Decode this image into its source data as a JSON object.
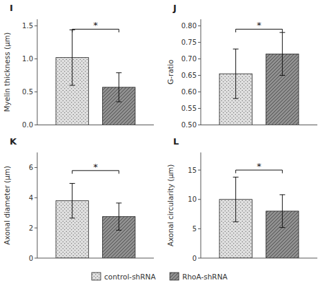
{
  "chart_data": [
    {
      "type": "bar",
      "title": "I",
      "y_label": "Myelin thickness (μm)",
      "categories": [
        null
      ],
      "series": [
        {
          "color": "#e0e0e0",
          "values": [
            1.02
          ],
          "errors": [
            0.42
          ]
        },
        {
          "color": "#909090",
          "values": [
            0.57
          ],
          "errors": [
            0.22
          ]
        }
      ],
      "ylim": [
        0,
        1.6
      ],
      "yticks": [
        {
          "value": 0.0,
          "label": "0.0"
        },
        {
          "value": 0.5,
          "label": "0.5"
        },
        {
          "value": 1.0,
          "label": "1.0"
        },
        {
          "value": 1.5,
          "label": "1.5"
        }
      ],
      "tick_labels": "y",
      "annotations": [
        {
          "text": "*",
          "y": 1.45
        }
      ]
    },
    {
      "type": "bar",
      "title": "J",
      "y_label": "G-ratio",
      "categories": [
        null
      ],
      "series": [
        {
          "color": "#e0e0e0",
          "values": [
            0.655
          ],
          "errors": [
            0.075
          ]
        },
        {
          "color": "#909090",
          "values": [
            0.715
          ],
          "errors": [
            0.065
          ]
        }
      ],
      "ylim": [
        0.5,
        0.82
      ],
      "yticks": [
        {
          "value": 0.5,
          "label": "0.50"
        },
        {
          "value": 0.55,
          "label": "0.55"
        },
        {
          "value": 0.6,
          "label": "0.60"
        },
        {
          "value": 0.65,
          "label": "0.65"
        },
        {
          "value": 0.7,
          "label": "0.70"
        },
        {
          "value": 0.75,
          "label": "0.75"
        },
        {
          "value": 0.8,
          "label": "0.80"
        }
      ],
      "tick_labels": "y",
      "annotations": [
        {
          "text": "*",
          "y": 0.79
        }
      ]
    },
    {
      "type": "bar",
      "title": "K",
      "y_label": "Axonal diameter (μm)",
      "categories": [
        null
      ],
      "series": [
        {
          "color": "#e0e0e0",
          "values": [
            3.8
          ],
          "errors": [
            1.15
          ]
        },
        {
          "color": "#909090",
          "values": [
            2.75
          ],
          "errors": [
            0.9
          ]
        }
      ],
      "ylim": [
        0,
        7
      ],
      "yticks": [
        0,
        2,
        4,
        6
      ],
      "tick_labels": "y",
      "annotations": [
        {
          "text": "*",
          "y": 5.8
        }
      ]
    },
    {
      "type": "bar",
      "title": "L",
      "y_label": "Axonal circularity (μm)",
      "categories": [
        null
      ],
      "series": [
        {
          "name": "control-shRNA",
          "color": "#e0e0e0",
          "values": [
            10.0
          ],
          "errors": [
            3.8
          ]
        },
        {
          "name": "RhoA-shRNA",
          "color": "#909090",
          "values": [
            8.0
          ],
          "errors": [
            2.8
          ]
        }
      ],
      "ylim": [
        0,
        18
      ],
      "yticks": [
        0,
        5,
        10,
        15
      ],
      "tick_labels": "y",
      "legend": "bottom",
      "annotations": [
        {
          "text": "*",
          "y": 15.0
        }
      ]
    }
  ]
}
